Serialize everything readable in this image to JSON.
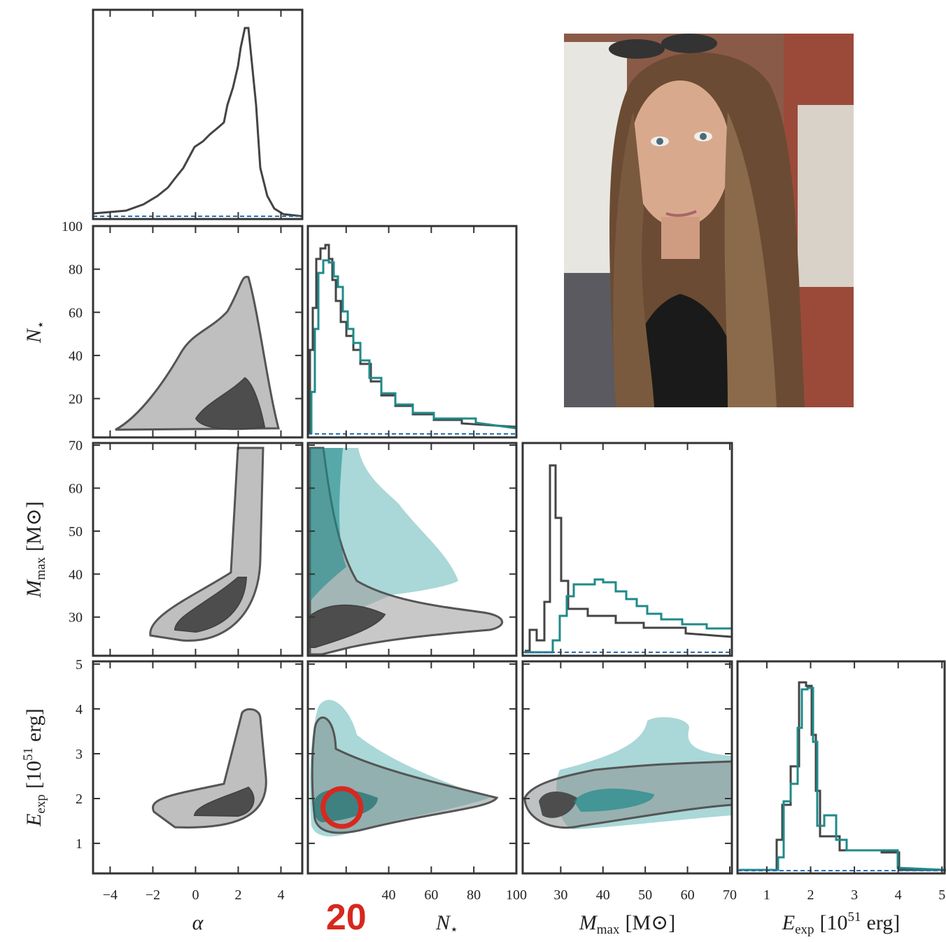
{
  "chart_data": {
    "type": "corner",
    "axes": [
      {
        "label": {
          "symbol": "α"
        },
        "lim": [
          -4.8,
          5
        ],
        "ticks": [
          {
            "value": -4,
            "label": "−4"
          },
          {
            "value": -2,
            "label": "−2"
          },
          0,
          2,
          4
        ]
      },
      {
        "label": {
          "symbol": "N",
          "sub": "⋆"
        },
        "lim": [
          2,
          100
        ],
        "ticks": [
          {
            "value": 20,
            "label": "20",
            "color": "#d7281e",
            "bold": true
          },
          40,
          60,
          80,
          100
        ]
      },
      {
        "label": {
          "symbol": "M",
          "sub": "max",
          "unit": "[M⊙]"
        },
        "lim": [
          21,
          70.5
        ],
        "ticks": [
          30,
          40,
          50,
          60,
          70
        ]
      },
      {
        "label": {
          "symbol": "E",
          "sub": "exp",
          "unit": "[10",
          "sup": "51",
          "unit2": "erg]"
        },
        "lim": [
          0.33,
          5.06
        ],
        "ticks": [
          1,
          2,
          3,
          4,
          5
        ]
      }
    ],
    "annotations": [
      {
        "shape": "circle",
        "color": "#d7281e",
        "x_axis": 1,
        "y_axis": 3,
        "x": 18,
        "y": 1.8
      }
    ]
  }
}
